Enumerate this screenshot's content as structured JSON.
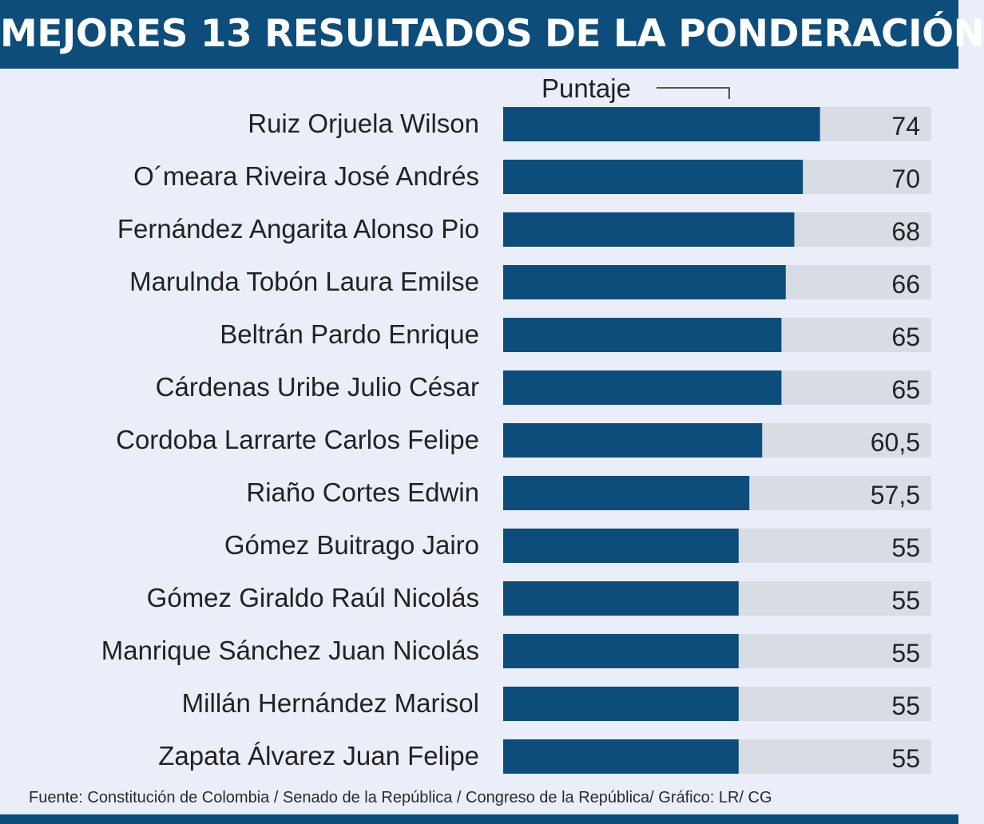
{
  "title": "MEJORES 13 RESULTADOS DE LA PONDERACIÓN",
  "source": "Fuente: Constitución de Colombia / Senado de la República / Congreso de la República/ Gráfico: LR/ CG",
  "colors": {
    "bar": "#0d4d7b",
    "track": "#d8dce5",
    "background": "#e9eef8",
    "title_bg": "#0d4d7b"
  },
  "chart_data": {
    "type": "bar",
    "orientation": "horizontal",
    "title": "MEJORES 13 RESULTADOS DE LA PONDERACIÓN",
    "series_label": "Puntaje",
    "categories": [
      "Ruiz Orjuela Wilson",
      "O´meara Riveira José Andrés",
      "Fernández Angarita Alonso Pio",
      "Marulnda Tobón Laura Emilse",
      "Beltrán Pardo Enrique",
      "Cárdenas Uribe Julio César",
      "Cordoba Larrarte Carlos Felipe",
      "Riaño Cortes Edwin",
      "Gómez Buitrago Jairo",
      "Gómez Giraldo Raúl Nicolás",
      "Manrique Sánchez Juan Nicolás",
      "Millán Hernández Marisol",
      "Zapata Álvarez Juan Felipe"
    ],
    "values": [
      74,
      70,
      68,
      66,
      65,
      65,
      60.5,
      57.5,
      55,
      55,
      55,
      55,
      55
    ],
    "value_labels": [
      "74",
      "70",
      "68",
      "66",
      "65",
      "65",
      "60,5",
      "57,5",
      "55",
      "55",
      "55",
      "55",
      "55"
    ],
    "xlim": [
      0,
      100
    ]
  }
}
